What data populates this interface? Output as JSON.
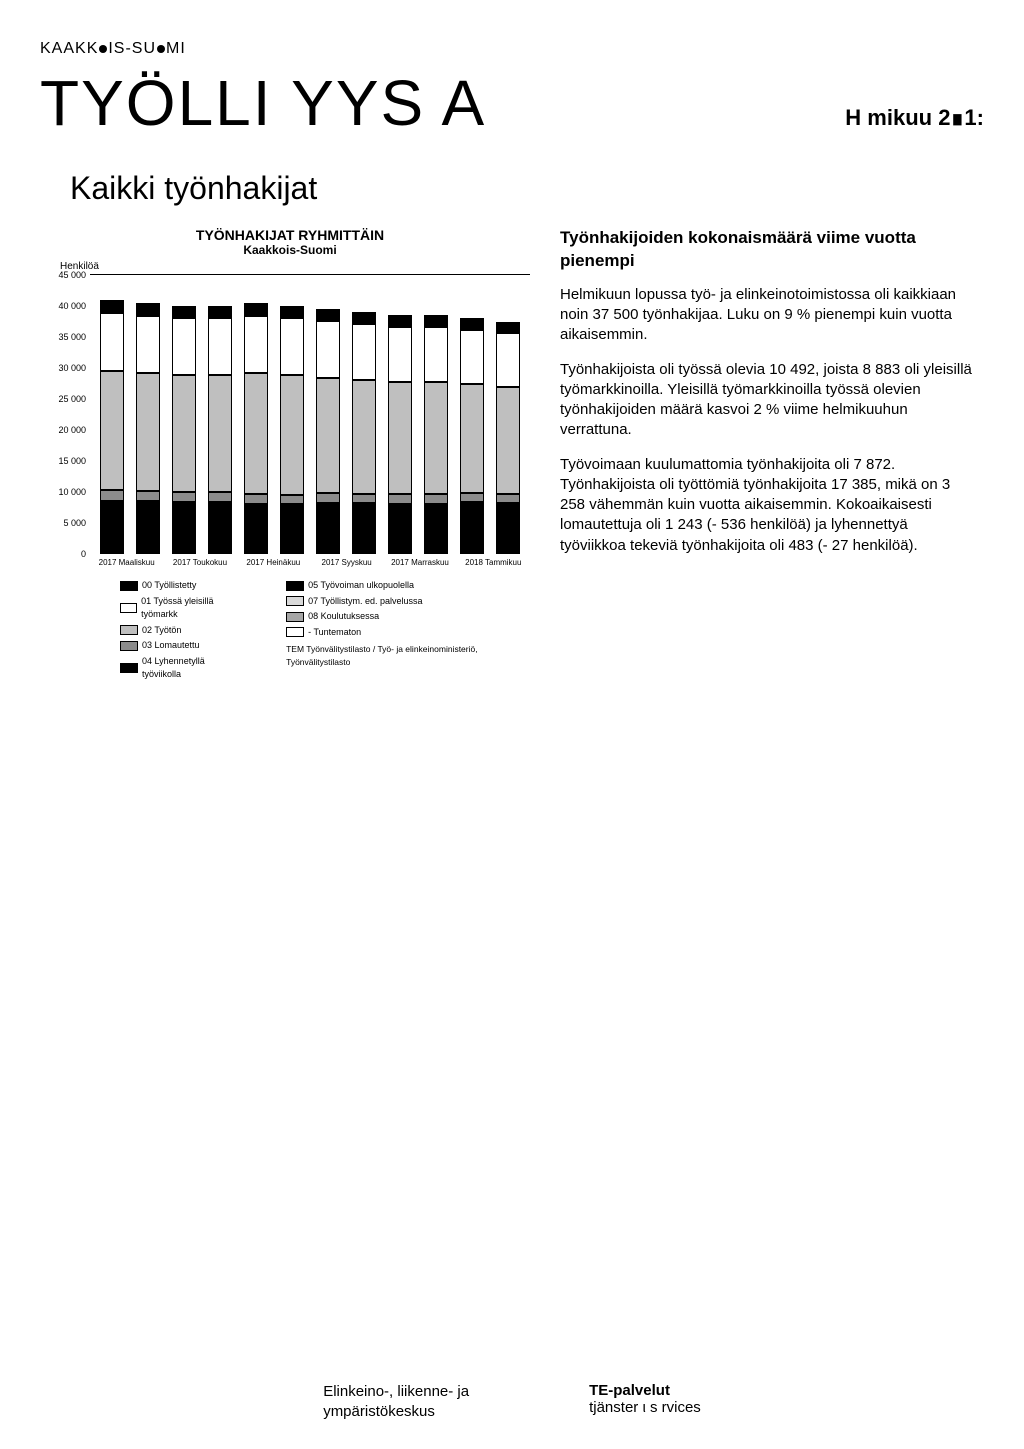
{
  "brand": {
    "pre": "KAAKK",
    "mid": "IS-SU",
    "post": "MI"
  },
  "title": {
    "main": "TYÖLLI  YYS  A",
    "date_label": "H  mikuu 2∎1:"
  },
  "subsection": "Kaikki työnhakijat",
  "chart": {
    "type": "stacked-bar",
    "title": "TYÖNHAKIJAT RYHMITTÄIN",
    "subtitle": "Kaakkois-Suomi",
    "ylabel": "Henkilöä",
    "ylim": [
      0,
      45000
    ],
    "ytick_step": 5000,
    "yticks": [
      "45 000",
      "40 000",
      "35 000",
      "30 000",
      "25 000",
      "20 000",
      "15 000",
      "10 000",
      "5 000",
      "0"
    ],
    "categories": [
      "2017 Maaliskuu",
      "",
      "2017 Toukokuu",
      "",
      "2017 Heinäkuu",
      "",
      "2017 Syyskuu",
      "",
      "2017 Marraskuu",
      "",
      "2018 Tammikuu",
      ""
    ],
    "series_colors": {
      "s00": "#000000",
      "s01": "#ffffff",
      "s02": "#bfbfbf",
      "s03": "#8c8c8c",
      "s04": "#000000",
      "s05": "#000000",
      "s07": "#d9d9d9",
      "s08": "#a6a6a6",
      "sUn": "#ffffff"
    },
    "approx_month_totals": [
      41000,
      40500,
      40000,
      40000,
      40500,
      40000,
      39500,
      39000,
      38500,
      38500,
      38000,
      37500
    ],
    "bar_segments_pct": [
      [
        5,
        23,
        47,
        4,
        1,
        20
      ],
      [
        5,
        23,
        47,
        4,
        1,
        20
      ],
      [
        5,
        23,
        47,
        4,
        1,
        20
      ],
      [
        5,
        23,
        47,
        4,
        1,
        20
      ],
      [
        5,
        23,
        48,
        4,
        1,
        19
      ],
      [
        5,
        23,
        48,
        4,
        1,
        19
      ],
      [
        5,
        23,
        47,
        4,
        2,
        19
      ],
      [
        5,
        23,
        47,
        4,
        2,
        19
      ],
      [
        5,
        23,
        47,
        4,
        2,
        19
      ],
      [
        5,
        23,
        47,
        4,
        2,
        19
      ],
      [
        5,
        23,
        46,
        4,
        3,
        19
      ],
      [
        5,
        23,
        46,
        4,
        3,
        19
      ]
    ],
    "segment_fill_order": [
      "s00",
      "s01",
      "s02",
      "s03",
      "s04",
      "s05"
    ],
    "legend_left": [
      {
        "sw": "s00",
        "label": "00 Työllistetty"
      },
      {
        "sw": "s01",
        "label": "01 Työssä yleisillä työmarkk"
      },
      {
        "sw": "s02",
        "label": "02 Työtön"
      },
      {
        "sw": "s03",
        "label": "03 Lomautettu"
      },
      {
        "sw": "s04",
        "label": "04 Lyhennetyllä työviikolla"
      }
    ],
    "legend_right": [
      {
        "sw": "s05",
        "label": "05 Työvoiman ulkopuolella"
      },
      {
        "sw": "s07",
        "label": "07 Työllistym. ed. palvelussa"
      },
      {
        "sw": "s08",
        "label": "08 Koulutuksessa"
      },
      {
        "sw": "sUn",
        "label": "- Tuntematon"
      }
    ],
    "source": "TEM Työnvälitystilasto / Työ- ja elinkeinoministeriö, Työnvälitystilasto",
    "background_color": "#ffffff",
    "axis_color": "#000000"
  },
  "right": {
    "heading": "Työnhakijoiden kokonaismäärä viime vuotta pienempi",
    "p1": "Helmikuun lopussa työ- ja elinkeinotoimistossa oli kaikkiaan noin 37 500 työnhakijaa. Luku on 9 % pienempi kuin vuotta aikaisemmin.",
    "p2": "Työnhakijoista oli työssä olevia 10 492, joista 8 883 oli yleisillä työmarkkinoilla. Yleisillä työmarkkinoilla työssä olevien työnhakijoiden määrä kasvoi 2 % viime helmikuuhun verrattuna.",
    "p3": "Työvoimaan kuulumattomia työnhakijoita oli 7 872. Työnhakijoista oli työttömiä työnhakijoita 17 385, mikä on 3 258 vähemmän kuin vuotta aikaisemmin. Kokoaikaisesti lomautettuja oli 1 243 (- 536 henkilöä) ja lyhennettyä työviikkoa tekeviä työnhakijoita oli 483 (- 27 henkilöä)."
  },
  "footer": {
    "org_line1": "Elinkeino-, liikenne- ja",
    "org_line2": "ympäristökeskus",
    "te_line1": "TE-palvelut",
    "te_line2": "tjänster ι s  rvices"
  }
}
